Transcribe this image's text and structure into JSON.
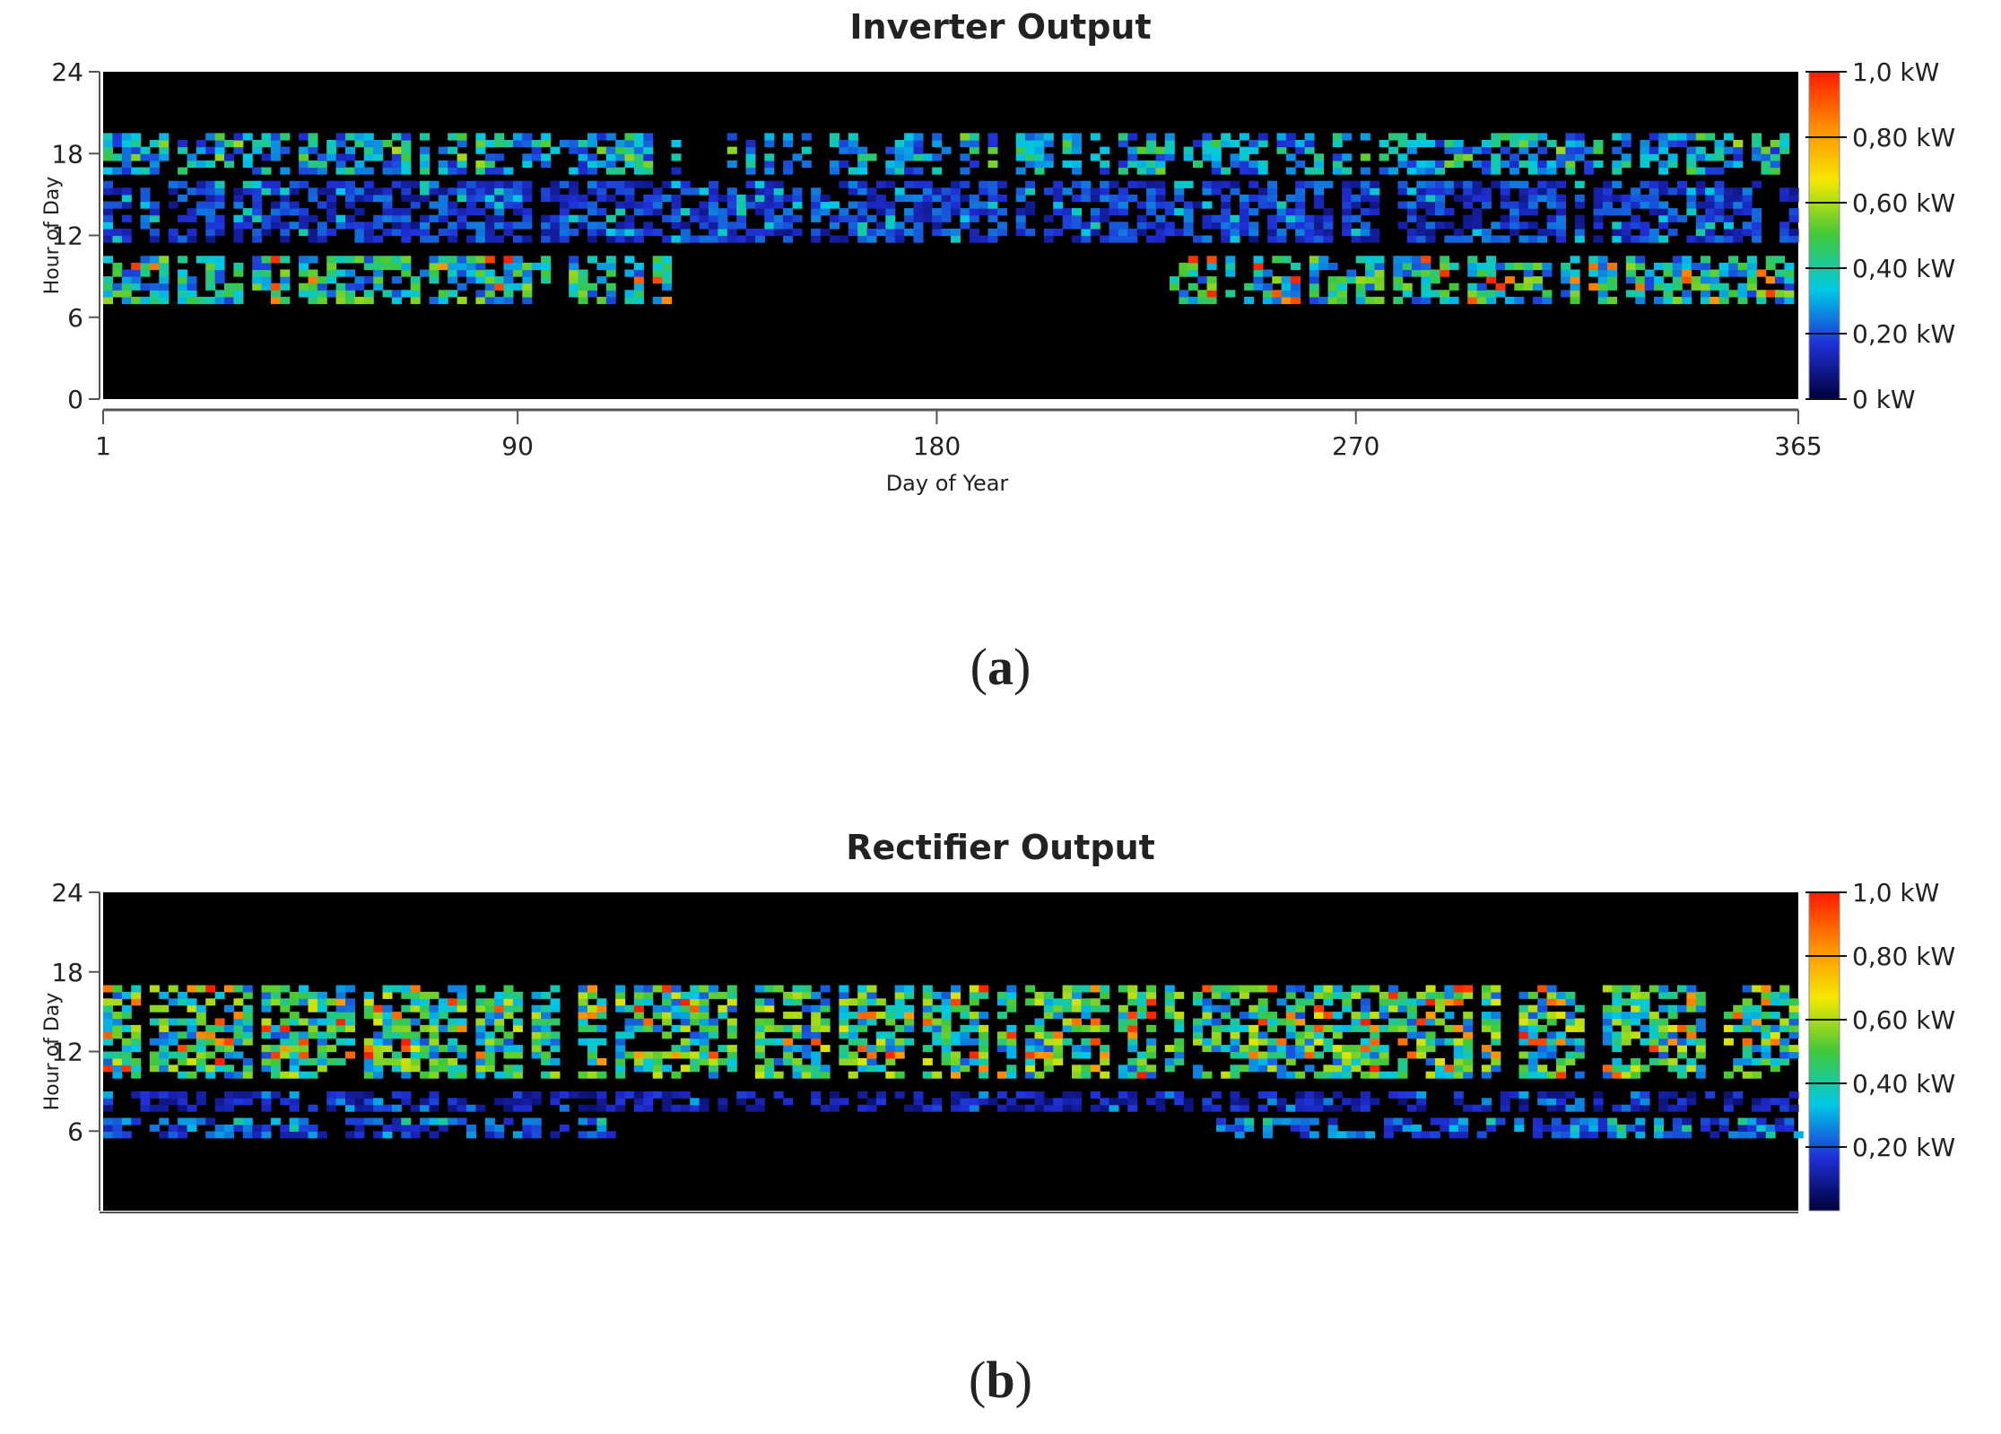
{
  "figure": {
    "captions": [
      "a",
      "b"
    ]
  },
  "chart_data": [
    {
      "type": "heatmap",
      "title": "Inverter Output",
      "xlabel": "Day of Year",
      "ylabel": "Hour of Day",
      "xlim": [
        1,
        365
      ],
      "ylim": [
        0,
        24
      ],
      "x_ticks": [
        "1",
        "90",
        "180",
        "270",
        "365"
      ],
      "y_ticks": [
        "24",
        "18",
        "12",
        "6",
        "0"
      ],
      "colorbar": {
        "range_kw": [
          0,
          1.0
        ],
        "tick_labels": [
          "1,0 kW",
          "0,80 kW",
          "0,60 kW",
          "0,40 kW",
          "0,20 kW",
          "0 kW"
        ],
        "colors": [
          "#00003a",
          "#1f2fd6",
          "#00c8e6",
          "#3ec83a",
          "#f5e800",
          "#ff8c00",
          "#ff1a00"
        ]
      },
      "background_color": "#000000",
      "bands": [
        {
          "hour_from": 16.5,
          "hour_to": 19.5,
          "day_segments": [
            [
              1,
              125
            ],
            [
              135,
              365
            ]
          ],
          "typical_kw": 0.35,
          "peak_kw": 0.6
        },
        {
          "hour_from": 11.5,
          "hour_to": 16.0,
          "day_segments": [
            [
              1,
              365
            ]
          ],
          "typical_kw": 0.2,
          "peak_kw": 0.4
        },
        {
          "hour_from": 7.0,
          "hour_to": 10.5,
          "day_segments": [
            [
              1,
              125
            ],
            [
              230,
              365
            ]
          ],
          "typical_kw": 0.45,
          "peak_kw": 1.0
        }
      ]
    },
    {
      "type": "heatmap",
      "title": "Rectifier Output",
      "xlabel": "",
      "ylabel": "Hour of Day",
      "xlim": [
        1,
        365
      ],
      "ylim": [
        0,
        24
      ],
      "x_ticks": [],
      "y_ticks": [
        "24",
        "18",
        "12",
        "6"
      ],
      "colorbar": {
        "range_kw": [
          0,
          1.0
        ],
        "tick_labels": [
          "1,0 kW",
          "0,80 kW",
          "0,60 kW",
          "0,40 kW",
          "0,20 kW"
        ],
        "colors": [
          "#00003a",
          "#1f2fd6",
          "#00c8e6",
          "#3ec83a",
          "#f5e800",
          "#ff8c00",
          "#ff1a00"
        ]
      },
      "background_color": "#000000",
      "bands": [
        {
          "hour_from": 10.0,
          "hour_to": 17.0,
          "day_segments": [
            [
              1,
              365
            ]
          ],
          "typical_kw": 0.5,
          "peak_kw": 1.0
        },
        {
          "hour_from": 7.5,
          "hour_to": 9.0,
          "day_segments": [
            [
              1,
              365
            ]
          ],
          "typical_kw": 0.15,
          "peak_kw": 0.3
        },
        {
          "hour_from": 5.5,
          "hour_to": 7.0,
          "day_segments": [
            [
              1,
              110
            ],
            [
              240,
              365
            ]
          ],
          "typical_kw": 0.25,
          "peak_kw": 0.45
        }
      ]
    }
  ]
}
